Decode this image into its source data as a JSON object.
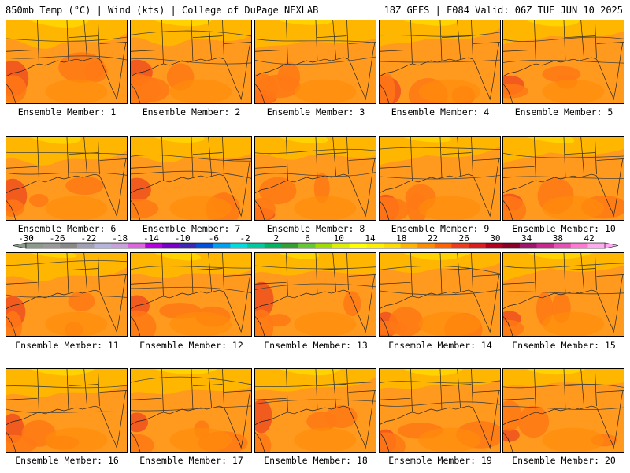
{
  "header": {
    "left": "850mb Temp (°C) | Wind (kts) | College of DuPage NEXLAB",
    "right": "18Z GEFS | F084 Valid: 06Z TUE JUN 10 2025"
  },
  "panel_label_prefix": "Ensemble Member:",
  "panels": [
    {
      "member": "1"
    },
    {
      "member": "2"
    },
    {
      "member": "3"
    },
    {
      "member": "4"
    },
    {
      "member": "5"
    },
    {
      "member": "6"
    },
    {
      "member": "7"
    },
    {
      "member": "8"
    },
    {
      "member": "9"
    },
    {
      "member": "10"
    },
    {
      "member": "11"
    },
    {
      "member": "12"
    },
    {
      "member": "13"
    },
    {
      "member": "14"
    },
    {
      "member": "15"
    },
    {
      "member": "16"
    },
    {
      "member": "17"
    },
    {
      "member": "18"
    },
    {
      "member": "19"
    },
    {
      "member": "20"
    }
  ],
  "colorbar": {
    "ticks": [
      "-30",
      "-26",
      "-22",
      "-18",
      "-14",
      "-10",
      "-6",
      "-2",
      "2",
      "6",
      "10",
      "14",
      "18",
      "22",
      "26",
      "30",
      "34",
      "38",
      "42"
    ],
    "colors": [
      "#8c9a8c",
      "#999999",
      "#888888",
      "#a0a0b4",
      "#b4b4dc",
      "#c8a0dc",
      "#dc64dc",
      "#b400dc",
      "#7800c8",
      "#3c28b4",
      "#0050dc",
      "#00a0f0",
      "#00dcdc",
      "#00c8a0",
      "#00b464",
      "#32a032",
      "#64c832",
      "#a0dc00",
      "#dcf000",
      "#ffff00",
      "#fff000",
      "#ffdc00",
      "#ffb400",
      "#ff8c00",
      "#ff6400",
      "#f03c1e",
      "#dc1e1e",
      "#b4001e",
      "#8c0028",
      "#a0146e",
      "#c8288c",
      "#e650b4",
      "#ff78d2",
      "#ffaaf0"
    ]
  }
}
